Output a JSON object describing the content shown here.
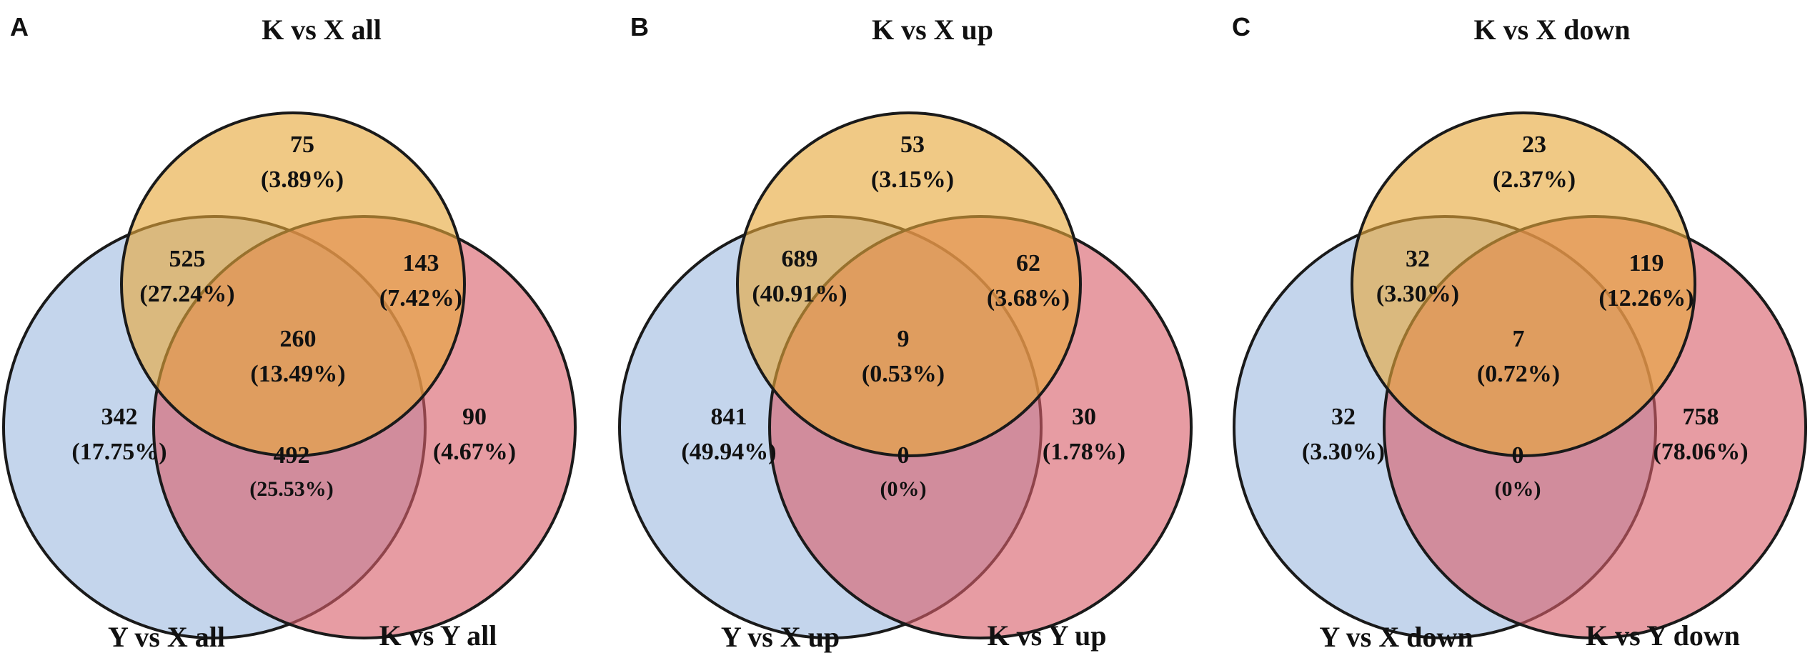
{
  "colors": {
    "top_set": "#e6a83a",
    "left_set": "#9fbbe0",
    "right_set": "#d9606b",
    "outline": "#1a1a1a"
  },
  "panels": [
    {
      "letter": "A",
      "top_label": "K vs X all",
      "left_label": "Y vs X all",
      "right_label": "K vs Y all",
      "regions": {
        "top_only": {
          "count": "75",
          "pct": "(3.89%)"
        },
        "top_left": {
          "count": "525",
          "pct": "(27.24%)"
        },
        "top_right": {
          "count": "143",
          "pct": "(7.42%)"
        },
        "center": {
          "count": "260",
          "pct": "(13.49%)"
        },
        "left_only": {
          "count": "342",
          "pct": "(17.75%)"
        },
        "right_only": {
          "count": "90",
          "pct": "(4.67%)"
        },
        "left_right": {
          "count": "492",
          "pct": "(25.53%)"
        }
      }
    },
    {
      "letter": "B",
      "top_label": "K vs X up",
      "left_label": "Y vs X up",
      "right_label": "K vs Y up",
      "regions": {
        "top_only": {
          "count": "53",
          "pct": "(3.15%)"
        },
        "top_left": {
          "count": "689",
          "pct": "(40.91%)"
        },
        "top_right": {
          "count": "62",
          "pct": "(3.68%)"
        },
        "center": {
          "count": "9",
          "pct": "(0.53%)"
        },
        "left_only": {
          "count": "841",
          "pct": "(49.94%)"
        },
        "right_only": {
          "count": "30",
          "pct": "(1.78%)"
        },
        "left_right": {
          "count": "0",
          "pct": "(0%)"
        }
      }
    },
    {
      "letter": "C",
      "top_label": "K vs X down",
      "left_label": "Y vs X down",
      "right_label": "K vs Y down",
      "regions": {
        "top_only": {
          "count": "23",
          "pct": "(2.37%)"
        },
        "top_left": {
          "count": "32",
          "pct": "(3.30%)"
        },
        "top_right": {
          "count": "119",
          "pct": "(12.26%)"
        },
        "center": {
          "count": "7",
          "pct": "(0.72%)"
        },
        "left_only": {
          "count": "32",
          "pct": "(3.30%)"
        },
        "right_only": {
          "count": "758",
          "pct": "(78.06%)"
        },
        "left_right": {
          "count": "0",
          "pct": "(0%)"
        }
      }
    }
  ]
}
